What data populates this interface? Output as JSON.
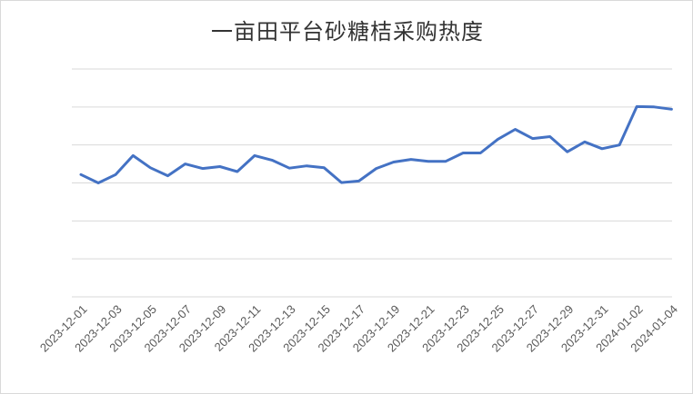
{
  "chart_data": {
    "type": "line",
    "title": "一亩田平台砂糖桔采购热度",
    "xlabel": "",
    "ylabel": "",
    "grid": true,
    "legend": "none",
    "line_color": "#4472c4",
    "x": [
      "2023-12-01",
      "2023-12-02",
      "2023-12-03",
      "2023-12-04",
      "2023-12-05",
      "2023-12-06",
      "2023-12-07",
      "2023-12-08",
      "2023-12-09",
      "2023-12-10",
      "2023-12-11",
      "2023-12-12",
      "2023-12-13",
      "2023-12-14",
      "2023-12-15",
      "2023-12-16",
      "2023-12-17",
      "2023-12-18",
      "2023-12-19",
      "2023-12-20",
      "2023-12-21",
      "2023-12-22",
      "2023-12-23",
      "2023-12-24",
      "2023-12-25",
      "2023-12-26",
      "2023-12-27",
      "2023-12-28",
      "2023-12-29",
      "2023-12-30",
      "2023-12-31",
      "2024-01-01",
      "2024-01-02",
      "2024-01-03",
      "2024-01-04"
    ],
    "tick_labels": [
      "2023-12-01",
      "2023-12-03",
      "2023-12-05",
      "2023-12-07",
      "2023-12-09",
      "2023-12-11",
      "2023-12-13",
      "2023-12-15",
      "2023-12-17",
      "2023-12-19",
      "2023-12-21",
      "2023-12-23",
      "2023-12-25",
      "2023-12-27",
      "2023-12-29",
      "2023-12-31",
      "2024-01-02",
      "2024-01-04"
    ],
    "values": [
      3.22,
      3.0,
      3.22,
      3.72,
      3.4,
      3.19,
      3.5,
      3.38,
      3.43,
      3.3,
      3.72,
      3.6,
      3.39,
      3.45,
      3.4,
      3.01,
      3.05,
      3.38,
      3.55,
      3.62,
      3.57,
      3.57,
      3.79,
      3.79,
      4.15,
      4.41,
      4.17,
      4.22,
      3.82,
      4.08,
      3.9,
      4.0,
      5.01,
      5.0,
      4.94
    ],
    "ylim": [
      0,
      6
    ],
    "y_gridlines": 6
  }
}
